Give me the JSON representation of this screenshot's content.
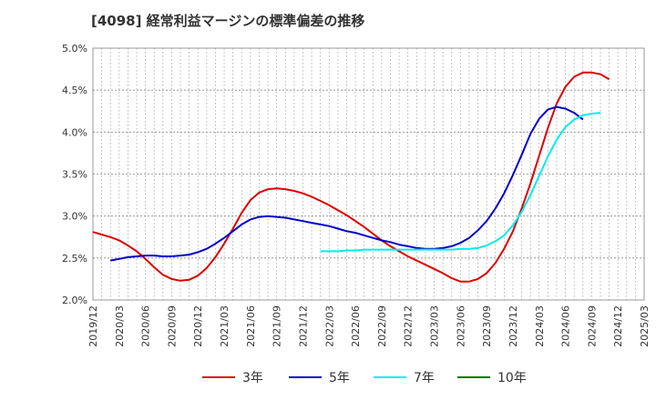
{
  "chart_data": {
    "type": "line",
    "title": "[4098]  経常利益マージンの標準偏差の推移",
    "ylim": [
      2.0,
      5.0
    ],
    "y_ticks": [
      "2.0%",
      "2.5%",
      "3.0%",
      "3.5%",
      "4.0%",
      "4.5%",
      "5.0%"
    ],
    "x_ticks": [
      "2019/12",
      "2020/03",
      "2020/06",
      "2020/09",
      "2020/12",
      "2021/03",
      "2021/06",
      "2021/09",
      "2021/12",
      "2022/03",
      "2022/06",
      "2022/09",
      "2022/12",
      "2023/03",
      "2023/06",
      "2023/09",
      "2023/12",
      "2024/03",
      "2024/06",
      "2024/09",
      "2024/12",
      "2025/03"
    ],
    "grid": true,
    "legend_position": "bottom",
    "series": [
      {
        "name": "3年",
        "color": "#dd0000",
        "start_index": 0,
        "values": [
          2.81,
          2.78,
          2.75,
          2.71,
          2.65,
          2.58,
          2.49,
          2.39,
          2.3,
          2.25,
          2.23,
          2.24,
          2.29,
          2.38,
          2.51,
          2.67,
          2.85,
          3.04,
          3.19,
          3.28,
          3.32,
          3.33,
          3.32,
          3.3,
          3.27,
          3.23,
          3.18,
          3.13,
          3.07,
          3.01,
          2.94,
          2.87,
          2.79,
          2.71,
          2.64,
          2.58,
          2.52,
          2.47,
          2.42,
          2.37,
          2.32,
          2.26,
          2.22,
          2.22,
          2.25,
          2.32,
          2.44,
          2.61,
          2.82,
          3.09,
          3.39,
          3.72,
          4.05,
          4.34,
          4.54,
          4.66,
          4.71,
          4.71,
          4.69,
          4.63
        ]
      },
      {
        "name": "5年",
        "color": "#0000cc",
        "start_index": 2,
        "values": [
          2.47,
          2.49,
          2.51,
          2.52,
          2.53,
          2.53,
          2.52,
          2.52,
          2.53,
          2.54,
          2.57,
          2.61,
          2.67,
          2.74,
          2.82,
          2.9,
          2.96,
          2.99,
          3.0,
          2.99,
          2.98,
          2.96,
          2.94,
          2.92,
          2.9,
          2.88,
          2.85,
          2.82,
          2.8,
          2.77,
          2.74,
          2.71,
          2.69,
          2.66,
          2.64,
          2.62,
          2.61,
          2.61,
          2.62,
          2.64,
          2.68,
          2.74,
          2.83,
          2.94,
          3.09,
          3.27,
          3.49,
          3.73,
          3.98,
          4.16,
          4.27,
          4.3,
          4.28,
          4.23,
          4.15
        ]
      },
      {
        "name": "7年",
        "color": "#00eeee",
        "start_index": 26,
        "values": [
          2.58,
          2.58,
          2.58,
          2.59,
          2.59,
          2.6,
          2.6,
          2.6,
          2.6,
          2.6,
          2.6,
          2.6,
          2.6,
          2.6,
          2.6,
          2.6,
          2.61,
          2.61,
          2.62,
          2.65,
          2.7,
          2.77,
          2.89,
          3.05,
          3.25,
          3.48,
          3.71,
          3.91,
          4.06,
          4.15,
          4.2,
          4.22,
          4.23
        ]
      },
      {
        "name": "10年",
        "color": "#007700",
        "start_index": 0,
        "values": []
      }
    ]
  }
}
